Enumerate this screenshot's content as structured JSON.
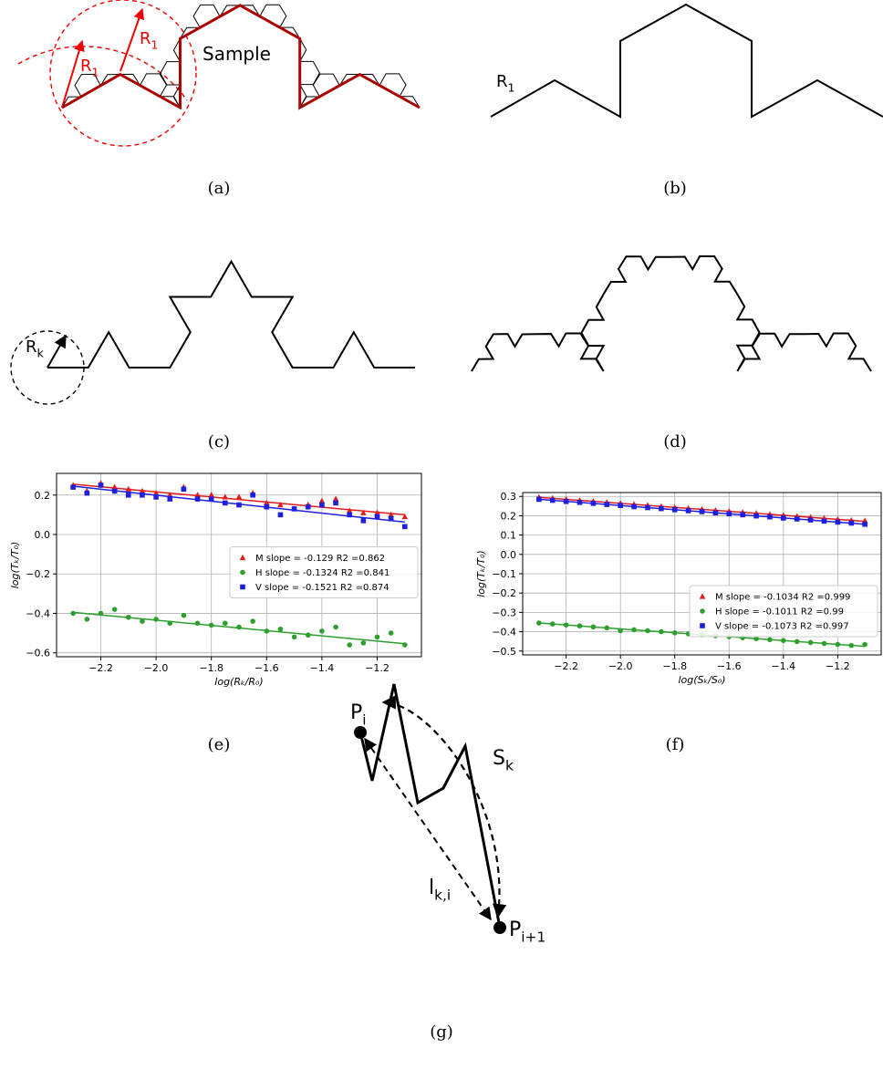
{
  "panels": {
    "a": {
      "caption": "(a)",
      "labels": [
        {
          "text": "R",
          "sub": "1"
        },
        {
          "text": "R",
          "sub": "1"
        },
        {
          "text": "Sample"
        }
      ]
    },
    "b": {
      "caption": "(b)",
      "labels": [
        {
          "text": "R",
          "sub": "1"
        }
      ]
    },
    "c": {
      "caption": "(c)",
      "labels": [
        {
          "text": "R",
          "sub": "k"
        }
      ]
    },
    "d": {
      "caption": "(d)"
    },
    "e": {
      "caption": "(e)"
    },
    "f": {
      "caption": "(f)"
    },
    "g": {
      "caption": "(g)",
      "labels": [
        {
          "text": "P",
          "sub": "i"
        },
        {
          "text": "S",
          "sub": "k"
        },
        {
          "text": "l",
          "sub": "k,i"
        },
        {
          "text": "P",
          "sub": "i+1"
        }
      ]
    }
  },
  "chart_data": [
    {
      "type": "scatter",
      "xlabel": "log(Rₖ/R₀)",
      "ylabel": "log(Tₖ/T₀)",
      "grid": true,
      "legend": "center right",
      "xlim": [
        -2.36,
        -1.04
      ],
      "ylim": [
        -0.62,
        0.31
      ],
      "xticks": [
        {
          "value": -2.2,
          "label": "−2.2"
        },
        {
          "value": -2.0,
          "label": "−2.0"
        },
        {
          "value": -1.8,
          "label": "−1.8"
        },
        {
          "value": -1.6,
          "label": "−1.6"
        },
        {
          "value": -1.4,
          "label": "−1.4"
        },
        {
          "value": -1.2,
          "label": "−1.2"
        }
      ],
      "yticks": [
        {
          "value": -0.6,
          "label": "−0.6"
        },
        {
          "value": -0.4,
          "label": "−0.4"
        },
        {
          "value": -0.2,
          "label": "−0.2"
        },
        {
          "value": 0,
          "label": "0.0"
        },
        0.2
      ],
      "x": [
        -2.3,
        -2.25,
        -2.2,
        -2.15,
        -2.1,
        -2.05,
        -2.0,
        -1.95,
        -1.9,
        -1.85,
        -1.8,
        -1.75,
        -1.7,
        -1.65,
        -1.6,
        -1.55,
        -1.5,
        -1.45,
        -1.4,
        -1.35,
        -1.3,
        -1.25,
        -1.2,
        -1.15,
        -1.1
      ],
      "fit_x": [
        -2.3,
        -1.1
      ],
      "series": [
        {
          "name": "M slope = -0.129  R2 =0.862",
          "color": "#e41a1c",
          "marker": "triangle",
          "fit": [
            0.255,
            0.1
          ],
          "values": [
            0.25,
            0.22,
            0.26,
            0.24,
            0.23,
            0.22,
            0.21,
            0.2,
            0.24,
            0.2,
            0.2,
            0.19,
            0.19,
            0.21,
            0.16,
            0.15,
            0.13,
            0.15,
            0.17,
            0.18,
            0.12,
            0.11,
            0.11,
            0.1,
            0.09
          ]
        },
        {
          "name": "H slope = -0.1324  R2 =0.841",
          "color": "#2ca02c",
          "marker": "circle",
          "fit": [
            -0.395,
            -0.554
          ],
          "values": [
            -0.4,
            -0.43,
            -0.4,
            -0.38,
            -0.42,
            -0.44,
            -0.43,
            -0.45,
            -0.41,
            -0.45,
            -0.46,
            -0.45,
            -0.47,
            -0.44,
            -0.49,
            -0.48,
            -0.52,
            -0.51,
            -0.49,
            -0.47,
            -0.56,
            -0.55,
            -0.52,
            -0.5,
            -0.56
          ]
        },
        {
          "name": "V slope = -0.1521  R2 =0.874",
          "color": "#1f1fe0",
          "marker": "square",
          "fit": [
            0.245,
            0.063
          ],
          "values": [
            0.24,
            0.21,
            0.25,
            0.22,
            0.2,
            0.2,
            0.19,
            0.18,
            0.23,
            0.18,
            0.18,
            0.16,
            0.15,
            0.2,
            0.14,
            0.1,
            0.13,
            0.14,
            0.15,
            0.16,
            0.1,
            0.07,
            0.09,
            0.08,
            0.04
          ]
        }
      ]
    },
    {
      "type": "scatter",
      "xlabel": "log(Sₖ/S₀)",
      "ylabel": "log(Tₖ/T₀)",
      "grid": true,
      "legend": "lower right",
      "xlim": [
        -2.36,
        -1.04
      ],
      "ylim": [
        -0.52,
        0.32
      ],
      "xticks": [
        {
          "value": -2.2,
          "label": "−2.2"
        },
        {
          "value": -2.0,
          "label": "−2.0"
        },
        {
          "value": -1.8,
          "label": "−1.8"
        },
        {
          "value": -1.6,
          "label": "−1.6"
        },
        {
          "value": -1.4,
          "label": "−1.4"
        },
        {
          "value": -1.2,
          "label": "−1.2"
        }
      ],
      "yticks": [
        {
          "value": -0.5,
          "label": "−0.5"
        },
        {
          "value": -0.4,
          "label": "−0.4"
        },
        {
          "value": -0.3,
          "label": "−0.3"
        },
        {
          "value": -0.2,
          "label": "−0.2"
        },
        {
          "value": -0.1,
          "label": "−0.1"
        },
        {
          "value": 0,
          "label": "0.0"
        },
        0.1,
        0.2,
        0.3
      ],
      "x": [
        -2.3,
        -2.25,
        -2.2,
        -2.15,
        -2.1,
        -2.05,
        -2.0,
        -1.95,
        -1.9,
        -1.85,
        -1.8,
        -1.75,
        -1.7,
        -1.65,
        -1.6,
        -1.55,
        -1.5,
        -1.45,
        -1.4,
        -1.35,
        -1.3,
        -1.25,
        -1.2,
        -1.15,
        -1.1
      ],
      "fit_x": [
        -2.3,
        -1.1
      ],
      "series": [
        {
          "name": "M slope = -0.1034  R2 =0.999",
          "color": "#e41a1c",
          "marker": "triangle",
          "fit": [
            0.295,
            0.171
          ],
          "values": [
            0.295,
            0.29,
            0.285,
            0.279,
            0.274,
            0.269,
            0.264,
            0.259,
            0.254,
            0.248,
            0.243,
            0.238,
            0.233,
            0.228,
            0.223,
            0.217,
            0.212,
            0.207,
            0.202,
            0.197,
            0.192,
            0.186,
            0.181,
            0.176,
            0.174
          ]
        },
        {
          "name": "H slope = -0.1011  R2 =0.99",
          "color": "#2ca02c",
          "marker": "circle",
          "fit": [
            -0.355,
            -0.476
          ],
          "values": [
            -0.355,
            -0.36,
            -0.365,
            -0.37,
            -0.375,
            -0.38,
            -0.395,
            -0.39,
            -0.395,
            -0.4,
            -0.406,
            -0.411,
            -0.416,
            -0.421,
            -0.426,
            -0.431,
            -0.436,
            -0.441,
            -0.446,
            -0.451,
            -0.456,
            -0.461,
            -0.466,
            -0.471,
            -0.466
          ]
        },
        {
          "name": "V slope = -0.1073  R2 =0.997",
          "color": "#1f1fe0",
          "marker": "square",
          "fit": [
            0.285,
            0.156
          ],
          "values": [
            0.285,
            0.28,
            0.274,
            0.269,
            0.264,
            0.258,
            0.253,
            0.247,
            0.242,
            0.237,
            0.231,
            0.226,
            0.221,
            0.215,
            0.21,
            0.205,
            0.199,
            0.194,
            0.188,
            0.183,
            0.178,
            0.172,
            0.167,
            0.162,
            0.156
          ]
        }
      ]
    }
  ]
}
